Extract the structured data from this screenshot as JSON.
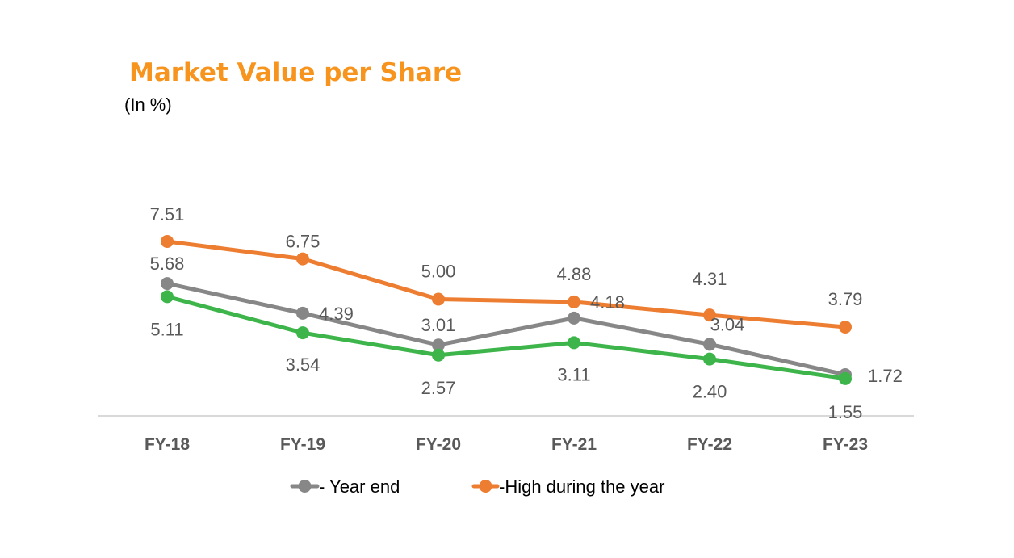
{
  "chart_data": {
    "type": "line",
    "title": "Market Value per Share",
    "subtitle": "(In %)",
    "categories": [
      "FY-18",
      "FY-19",
      "FY-20",
      "FY-21",
      "FY-22",
      "FY-23"
    ],
    "ylim": [
      0,
      8
    ],
    "grid": false,
    "legend_position": "bottom",
    "series": [
      {
        "key": "high",
        "name": "-High during the year",
        "color": "#ED7D31",
        "values": [
          7.51,
          6.75,
          5.0,
          4.88,
          4.31,
          3.79
        ],
        "labels": [
          "7.51",
          "6.75",
          "5.00",
          "4.88",
          "4.31",
          "3.79"
        ]
      },
      {
        "key": "yearend",
        "name": "- Year end",
        "color": "#878787",
        "values": [
          5.68,
          4.39,
          3.01,
          4.18,
          3.04,
          1.72
        ],
        "labels": [
          "5.68",
          "4.39",
          "3.01",
          "4.18",
          "3.04",
          "1.72"
        ]
      },
      {
        "key": "green",
        "color": "#3DB54A",
        "values": [
          5.11,
          3.54,
          2.57,
          3.11,
          2.4,
          1.55
        ],
        "labels": [
          "5.11",
          "3.54",
          "2.57",
          "3.11",
          "2.40",
          "1.55"
        ]
      }
    ]
  }
}
